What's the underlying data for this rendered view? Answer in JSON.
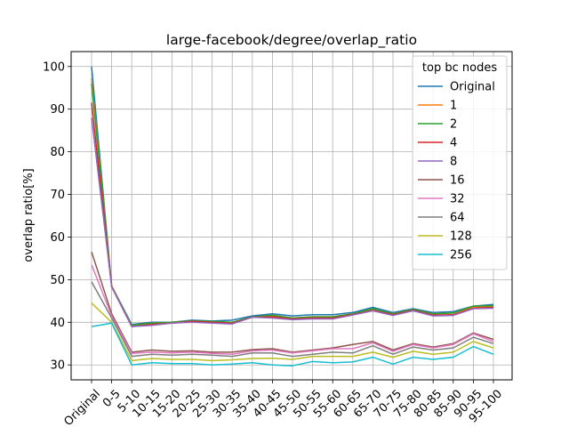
{
  "chart_data": {
    "type": "line",
    "title": "large-facebook/degree/overlap_ratio",
    "xlabel": "",
    "ylabel": "overlap ratio[%]",
    "ylim": [
      26.5,
      103.5
    ],
    "yticks": [
      30,
      40,
      50,
      60,
      70,
      80,
      90,
      100
    ],
    "grid": true,
    "legend": {
      "title": "top bc nodes",
      "position": "top-right"
    },
    "categories": [
      "Original",
      "0-5",
      "5-10",
      "10-15",
      "15-20",
      "20-25",
      "25-30",
      "30-35",
      "35-40",
      "40-45",
      "45-50",
      "50-55",
      "55-60",
      "60-65",
      "65-70",
      "70-75",
      "75-80",
      "80-85",
      "85-90",
      "90-95",
      "95-100"
    ],
    "series": [
      {
        "name": "Original",
        "color": "#1f77b4",
        "values": [
          100,
          48.5,
          39.5,
          40.0,
          40.0,
          40.5,
          40.3,
          40.5,
          41.5,
          42.0,
          41.5,
          41.8,
          41.8,
          42.3,
          43.5,
          42.3,
          43.2,
          42.3,
          42.5,
          43.8,
          44.2
        ]
      },
      {
        "name": "1",
        "color": "#ff7f0e",
        "values": [
          97,
          48.5,
          39.3,
          39.8,
          40.0,
          40.3,
          40.0,
          40.0,
          41.2,
          41.5,
          41.0,
          41.3,
          41.3,
          42.0,
          43.0,
          42.0,
          43.0,
          42.0,
          42.2,
          43.5,
          43.8
        ]
      },
      {
        "name": "2",
        "color": "#2ca02c",
        "values": [
          96,
          48.5,
          39.3,
          39.8,
          40.0,
          40.3,
          40.2,
          40.0,
          41.3,
          41.7,
          41.0,
          41.3,
          41.3,
          42.0,
          43.2,
          42.0,
          43.0,
          42.0,
          42.2,
          43.8,
          43.9
        ]
      },
      {
        "name": "4",
        "color": "#d62728",
        "values": [
          91.5,
          48.3,
          39.0,
          39.5,
          39.8,
          40.2,
          40.0,
          39.8,
          41.2,
          41.3,
          40.8,
          41.0,
          41.0,
          41.8,
          42.8,
          41.8,
          42.8,
          41.7,
          41.8,
          43.3,
          43.5
        ]
      },
      {
        "name": "8",
        "color": "#9467bd",
        "values": [
          88,
          48.3,
          39.0,
          39.3,
          39.8,
          40.0,
          39.8,
          39.6,
          41.2,
          41.0,
          40.6,
          40.8,
          40.8,
          41.7,
          42.7,
          41.6,
          42.7,
          41.5,
          41.6,
          43.2,
          43.3
        ]
      },
      {
        "name": "16",
        "color": "#8c564b",
        "values": [
          56.5,
          42.0,
          33.0,
          33.5,
          33.2,
          33.3,
          33.0,
          33.0,
          33.6,
          33.8,
          33.0,
          33.5,
          34.0,
          34.8,
          35.5,
          33.5,
          35.0,
          34.2,
          35.0,
          37.5,
          36.0
        ]
      },
      {
        "name": "32",
        "color": "#e377c2",
        "values": [
          53.5,
          41.5,
          32.7,
          33.0,
          32.8,
          33.0,
          32.7,
          32.5,
          33.3,
          33.5,
          32.8,
          33.3,
          33.8,
          33.8,
          35.2,
          33.2,
          34.8,
          34.0,
          34.8,
          37.3,
          35.5
        ]
      },
      {
        "name": "64",
        "color": "#7f7f7f",
        "values": [
          49.5,
          41.0,
          32.0,
          32.5,
          32.3,
          32.5,
          32.3,
          32.0,
          32.8,
          32.8,
          32.0,
          32.5,
          33.0,
          32.8,
          34.5,
          32.5,
          34.2,
          33.5,
          34.0,
          36.5,
          35.0
        ]
      },
      {
        "name": "128",
        "color": "#bcbd22",
        "values": [
          44.5,
          40.0,
          31.0,
          31.5,
          31.3,
          31.3,
          31.0,
          31.2,
          31.5,
          31.6,
          31.3,
          32.0,
          32.0,
          32.0,
          33.0,
          31.8,
          33.2,
          32.5,
          33.0,
          35.5,
          34.0
        ]
      },
      {
        "name": "256",
        "color": "#17becf",
        "values": [
          39,
          39.8,
          30.0,
          30.5,
          30.3,
          30.3,
          30.0,
          30.2,
          30.5,
          30.0,
          29.8,
          30.8,
          30.5,
          30.7,
          31.8,
          30.2,
          31.8,
          31.3,
          31.8,
          34.3,
          32.5
        ]
      }
    ]
  }
}
